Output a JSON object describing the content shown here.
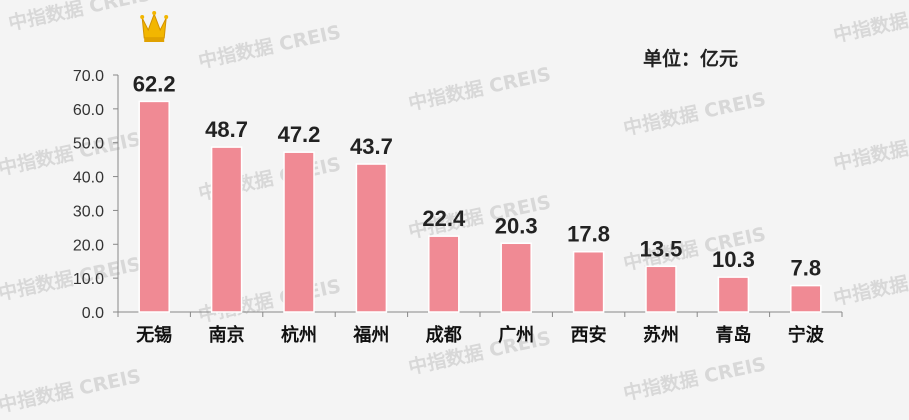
{
  "unit_label": "单位：亿元",
  "watermark": "中指数据 CREIS",
  "colors": {
    "bar": "#f08a94",
    "bar_edge": "#ffffff",
    "axis": "#888888",
    "crown": "#f2b600"
  },
  "icons": {
    "top_marker": "crown-icon"
  },
  "chart_data": {
    "type": "bar",
    "title": "",
    "xlabel": "",
    "ylabel": "",
    "categories": [
      "无锡",
      "南京",
      "杭州",
      "福州",
      "成都",
      "广州",
      "西安",
      "苏州",
      "青岛",
      "宁波"
    ],
    "values": [
      62.2,
      48.7,
      47.2,
      43.7,
      22.4,
      20.3,
      17.8,
      13.5,
      10.3,
      7.8
    ],
    "value_labels": [
      "62.2",
      "48.7",
      "47.2",
      "43.7",
      "22.4",
      "20.3",
      "17.8",
      "13.5",
      "10.3",
      "7.8"
    ],
    "ylim": [
      0,
      70
    ],
    "yticks": [
      "0.0",
      "10.0",
      "20.0",
      "30.0",
      "40.0",
      "50.0",
      "60.0",
      "70.0"
    ],
    "grid": false,
    "legend": "none"
  }
}
